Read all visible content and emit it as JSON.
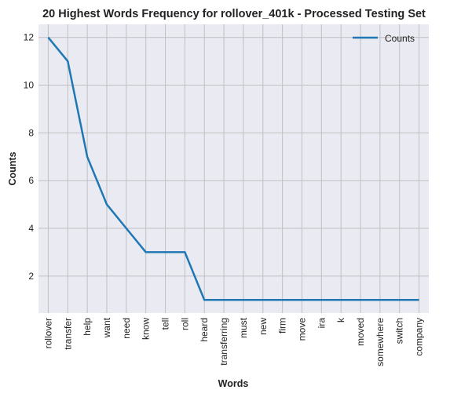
{
  "chart_data": {
    "type": "line",
    "title": "20 Highest Words Frequency for rollover_401k - Processed Testing Set",
    "xlabel": "Words",
    "ylabel": "Counts",
    "categories": [
      "rollover",
      "transfer",
      "help",
      "want",
      "need",
      "know",
      "tell",
      "roll",
      "heard",
      "transferring",
      "must",
      "new",
      "firm",
      "move",
      "ira",
      "k",
      "moved",
      "somewhere",
      "switch",
      "company"
    ],
    "series": [
      {
        "name": "Counts",
        "color": "#1f77b4",
        "values": [
          12,
          11,
          7,
          5,
          4,
          3,
          3,
          3,
          1,
          1,
          1,
          1,
          1,
          1,
          1,
          1,
          1,
          1,
          1,
          1
        ]
      }
    ],
    "ylim": [
      0.45,
      12.55
    ],
    "yticks": [
      2,
      4,
      6,
      8,
      10,
      12
    ],
    "grid": true,
    "legend_position": "top-right",
    "background_color": "#eaeaf2",
    "grid_color": "#c0c0c0"
  }
}
